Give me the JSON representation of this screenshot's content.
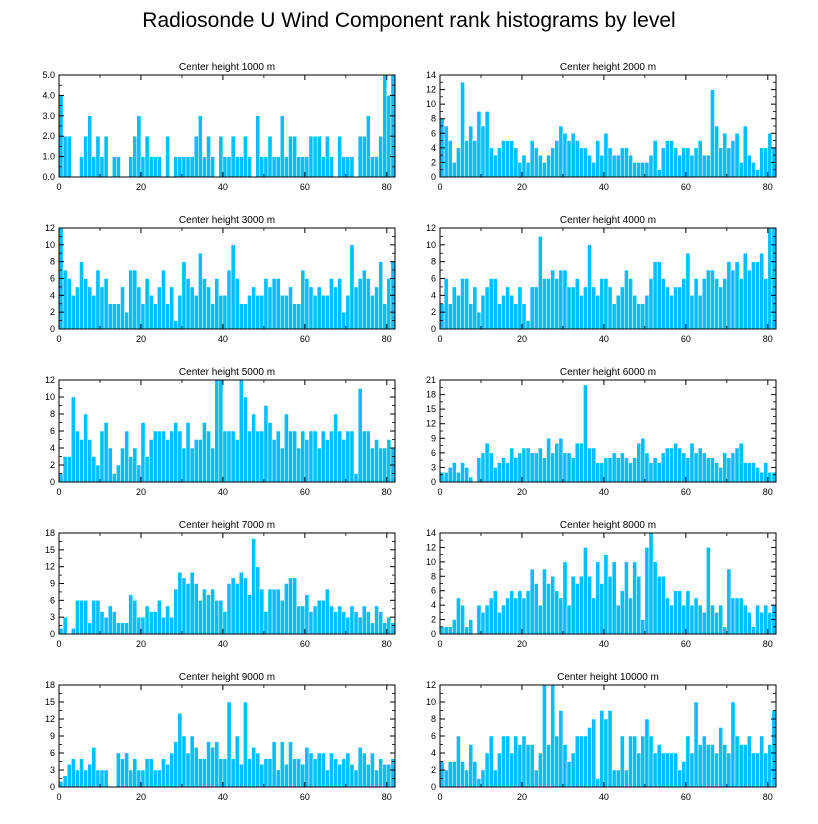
{
  "title": "Radiosonde U Wind Component rank histograms by level",
  "colors": {
    "bar": "#00bfff",
    "bar_edge": "#ffffff",
    "axis": "#000000"
  },
  "chart_data": [
    {
      "type": "bar",
      "title": "Center height 1000 m",
      "xlim": [
        0,
        82
      ],
      "ylim": [
        0,
        5
      ],
      "xticks": [
        "0",
        "20",
        "40",
        "60",
        "80"
      ],
      "yticks": [
        "0.0",
        "1.0",
        "2.0",
        "3.0",
        "4.0",
        "5.0"
      ],
      "values": [
        4,
        2,
        2,
        0,
        0,
        1,
        2,
        3,
        1,
        2,
        1,
        2,
        0,
        1,
        1,
        0,
        0,
        1,
        2,
        3,
        1,
        2,
        1,
        1,
        1,
        0,
        2,
        0,
        1,
        1,
        1,
        1,
        1,
        2,
        3,
        1,
        2,
        1,
        0,
        2,
        1,
        1,
        2,
        1,
        1,
        2,
        1,
        0,
        3,
        1,
        1,
        2,
        1,
        1,
        3,
        1,
        2,
        2,
        1,
        1,
        1,
        2,
        2,
        2,
        1,
        2,
        1,
        0,
        2,
        1,
        1,
        1,
        0,
        2,
        2,
        3,
        1,
        1,
        2,
        5,
        4,
        5
      ]
    },
    {
      "type": "bar",
      "title": "Center height 2000 m",
      "xlim": [
        0,
        82
      ],
      "ylim": [
        0,
        14
      ],
      "xticks": [
        "0",
        "20",
        "40",
        "60",
        "80"
      ],
      "yticks": [
        "0",
        "2",
        "4",
        "6",
        "8",
        "10",
        "12",
        "14"
      ],
      "values": [
        8,
        7,
        5,
        2,
        4,
        13,
        5,
        7,
        5,
        9,
        7,
        9,
        4,
        3,
        4,
        5,
        5,
        5,
        4,
        2,
        3,
        2,
        5,
        4,
        3,
        2,
        3,
        4,
        5,
        7,
        6,
        5,
        6,
        5,
        4,
        4,
        3,
        2,
        5,
        3,
        6,
        4,
        3,
        3,
        4,
        4,
        3,
        2,
        2,
        2,
        2,
        3,
        5,
        1,
        4,
        5,
        5,
        4,
        3,
        4,
        4,
        3,
        4,
        5,
        3,
        3,
        12,
        7,
        4,
        6,
        4,
        5,
        6,
        2,
        7,
        3,
        2,
        1,
        4,
        4,
        6,
        4
      ]
    },
    {
      "type": "bar",
      "title": "Center height 3000 m",
      "xlim": [
        0,
        82
      ],
      "ylim": [
        0,
        12
      ],
      "xticks": [
        "0",
        "20",
        "40",
        "60",
        "80"
      ],
      "yticks": [
        "0",
        "2",
        "4",
        "6",
        "8",
        "10",
        "12"
      ],
      "values": [
        12,
        7,
        6,
        4,
        5,
        8,
        6,
        5,
        4,
        7,
        5,
        6,
        3,
        3,
        3,
        5,
        2,
        7,
        7,
        5,
        3,
        6,
        4,
        3,
        5,
        7,
        3,
        5,
        1,
        4,
        8,
        6,
        5,
        4,
        9,
        6,
        5,
        3,
        6,
        4,
        4,
        7,
        10,
        6,
        3,
        3,
        4,
        5,
        4,
        4,
        6,
        5,
        6,
        6,
        4,
        4,
        5,
        3,
        3,
        7,
        6,
        5,
        4,
        5,
        4,
        4,
        6,
        5,
        6,
        2,
        4,
        10,
        5,
        6,
        7,
        6,
        4,
        5,
        8,
        3,
        6,
        8
      ]
    },
    {
      "type": "bar",
      "title": "Center height 4000 m",
      "xlim": [
        0,
        82
      ],
      "ylim": [
        0,
        12
      ],
      "xticks": [
        "0",
        "20",
        "40",
        "60",
        "80"
      ],
      "yticks": [
        "0",
        "2",
        "4",
        "6",
        "8",
        "10",
        "12"
      ],
      "values": [
        3,
        6,
        3,
        5,
        4,
        6,
        6,
        3,
        5,
        2,
        4,
        5,
        6,
        6,
        3,
        4,
        5,
        4,
        3,
        5,
        3,
        1,
        5,
        5,
        11,
        6,
        6,
        7,
        6,
        7,
        7,
        5,
        5,
        6,
        4,
        5,
        10,
        5,
        4,
        6,
        6,
        5,
        3,
        4,
        5,
        7,
        6,
        4,
        3,
        3,
        4,
        6,
        8,
        8,
        6,
        5,
        4,
        5,
        5,
        6,
        9,
        4,
        6,
        4,
        6,
        7,
        7,
        6,
        5,
        6,
        8,
        7,
        8,
        6,
        9,
        7,
        8,
        8,
        9,
        6,
        12,
        12
      ]
    },
    {
      "type": "bar",
      "title": "Center height 5000 m",
      "xlim": [
        0,
        82
      ],
      "ylim": [
        0,
        12
      ],
      "xticks": [
        "0",
        "20",
        "40",
        "60",
        "80"
      ],
      "yticks": [
        "0",
        "2",
        "4",
        "6",
        "8",
        "10",
        "12"
      ],
      "values": [
        1,
        3,
        3,
        10,
        6,
        5,
        8,
        5,
        3,
        2,
        6,
        7,
        4,
        1,
        2,
        4,
        6,
        3,
        4,
        2,
        7,
        3,
        5,
        6,
        6,
        6,
        5,
        6,
        7,
        6,
        4,
        7,
        4,
        5,
        5,
        7,
        6,
        4,
        12,
        12,
        6,
        6,
        6,
        5,
        12,
        10,
        6,
        8,
        6,
        6,
        9,
        7,
        5,
        6,
        4,
        8,
        6,
        6,
        4,
        6,
        5,
        6,
        6,
        4,
        6,
        5,
        6,
        8,
        6,
        5,
        6,
        6,
        1,
        11,
        6,
        6,
        4,
        5,
        4,
        4,
        5,
        4
      ]
    },
    {
      "type": "bar",
      "title": "Center height 6000 m",
      "xlim": [
        0,
        82
      ],
      "ylim": [
        0,
        21
      ],
      "xticks": [
        "0",
        "20",
        "40",
        "60",
        "80"
      ],
      "yticks": [
        "0",
        "3",
        "6",
        "9",
        "12",
        "15",
        "18",
        "21"
      ],
      "values": [
        2,
        2,
        3,
        4,
        2,
        4,
        3,
        1,
        0,
        5,
        6,
        8,
        6,
        3,
        4,
        5,
        4,
        7,
        5,
        6,
        7,
        7,
        6,
        6,
        7,
        5,
        9,
        6,
        8,
        9,
        6,
        6,
        5,
        8,
        8,
        20,
        7,
        7,
        4,
        4,
        5,
        5,
        6,
        5,
        6,
        5,
        4,
        5,
        8,
        9,
        6,
        4,
        5,
        4,
        6,
        7,
        7,
        8,
        7,
        6,
        5,
        8,
        6,
        7,
        6,
        5,
        5,
        4,
        3,
        6,
        5,
        6,
        7,
        8,
        4,
        4,
        4,
        3,
        2,
        4,
        2,
        2
      ]
    },
    {
      "type": "bar",
      "title": "Center height 7000 m",
      "xlim": [
        0,
        82
      ],
      "ylim": [
        0,
        18
      ],
      "xticks": [
        "0",
        "20",
        "40",
        "60",
        "80"
      ],
      "yticks": [
        "0",
        "3",
        "6",
        "9",
        "12",
        "15",
        "18"
      ],
      "values": [
        1,
        3,
        0,
        1,
        6,
        6,
        6,
        2,
        6,
        6,
        4,
        3,
        5,
        4,
        2,
        2,
        2,
        7,
        6,
        3,
        3,
        5,
        4,
        4,
        6,
        3,
        5,
        3,
        8,
        11,
        10,
        9,
        11,
        9,
        6,
        8,
        7,
        8,
        6,
        6,
        4,
        9,
        10,
        9,
        11,
        10,
        7,
        17,
        12,
        8,
        4,
        8,
        8,
        8,
        6,
        9,
        10,
        10,
        5,
        5,
        7,
        4,
        5,
        6,
        6,
        8,
        5,
        4,
        5,
        4,
        3,
        5,
        4,
        3,
        5,
        4,
        2,
        5,
        4,
        2,
        3,
        2
      ]
    },
    {
      "type": "bar",
      "title": "Center height 8000 m",
      "xlim": [
        0,
        82
      ],
      "ylim": [
        0,
        14
      ],
      "xticks": [
        "0",
        "20",
        "40",
        "60",
        "80"
      ],
      "yticks": [
        "0",
        "2",
        "4",
        "6",
        "8",
        "10",
        "12",
        "14"
      ],
      "values": [
        1,
        1,
        1,
        2,
        5,
        4,
        1,
        2,
        0,
        4,
        3,
        4,
        5,
        6,
        3,
        4,
        5,
        6,
        5,
        6,
        5,
        6,
        9,
        7,
        4,
        9,
        7,
        8,
        6,
        5,
        10,
        4,
        8,
        7,
        8,
        12,
        8,
        5,
        10,
        7,
        11,
        8,
        10,
        4,
        6,
        10,
        5,
        10,
        8,
        2,
        12,
        14,
        10,
        8,
        8,
        5,
        4,
        6,
        6,
        4,
        6,
        4,
        5,
        4,
        3,
        12,
        4,
        3,
        4,
        1,
        9,
        5,
        5,
        5,
        4,
        3,
        1,
        4,
        3,
        4,
        3,
        4
      ]
    },
    {
      "type": "bar",
      "title": "Center height 9000 m",
      "xlim": [
        0,
        82
      ],
      "ylim": [
        0,
        18
      ],
      "xticks": [
        "0",
        "20",
        "40",
        "60",
        "80"
      ],
      "yticks": [
        "0",
        "3",
        "6",
        "9",
        "12",
        "15",
        "18"
      ],
      "values": [
        1,
        2,
        4,
        5,
        3,
        5,
        3,
        4,
        7,
        3,
        3,
        3,
        0,
        0,
        6,
        5,
        6,
        3,
        5,
        3,
        3,
        5,
        5,
        3,
        3,
        5,
        4,
        6,
        8,
        13,
        9,
        6,
        9,
        7,
        5,
        5,
        8,
        7,
        8,
        5,
        5,
        15,
        5,
        9,
        4,
        15,
        5,
        7,
        6,
        4,
        5,
        5,
        8,
        3,
        8,
        4,
        8,
        5,
        5,
        4,
        7,
        6,
        5,
        6,
        6,
        3,
        6,
        5,
        4,
        5,
        6,
        4,
        3,
        7,
        6,
        4,
        6,
        3,
        5,
        4,
        4,
        5
      ]
    },
    {
      "type": "bar",
      "title": "Center height 10000 m",
      "xlim": [
        0,
        82
      ],
      "ylim": [
        0,
        12
      ],
      "xticks": [
        "0",
        "20",
        "40",
        "60",
        "80"
      ],
      "yticks": [
        "0",
        "2",
        "4",
        "6",
        "8",
        "10",
        "12"
      ],
      "values": [
        3,
        2,
        3,
        3,
        6,
        3,
        2,
        5,
        3,
        1,
        2,
        4,
        6,
        2,
        4,
        6,
        6,
        4,
        6,
        5,
        6,
        5,
        5,
        2,
        4,
        12,
        5,
        12,
        6,
        9,
        5,
        3,
        4,
        6,
        6,
        6,
        7,
        8,
        1,
        9,
        8,
        9,
        2,
        2,
        6,
        2,
        6,
        6,
        4,
        6,
        8,
        6,
        4,
        5,
        4,
        4,
        4,
        4,
        2,
        3,
        6,
        4,
        10,
        5,
        6,
        5,
        5,
        4,
        7,
        5,
        4,
        10,
        6,
        5,
        5,
        6,
        4,
        4,
        6,
        4,
        5,
        9
      ]
    }
  ]
}
